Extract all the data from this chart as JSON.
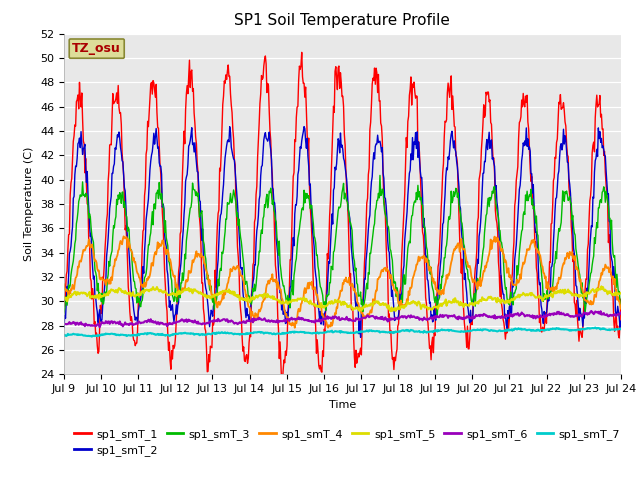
{
  "title": "SP1 Soil Temperature Profile",
  "xlabel": "Time",
  "ylabel": "Soil Temperature (C)",
  "ylim": [
    24,
    52
  ],
  "series_colors": {
    "sp1_smT_1": "#ff0000",
    "sp1_smT_2": "#0000cc",
    "sp1_smT_3": "#00bb00",
    "sp1_smT_4": "#ff8800",
    "sp1_smT_5": "#dddd00",
    "sp1_smT_6": "#9900bb",
    "sp1_smT_7": "#00cccc"
  },
  "annotation_text": "TZ_osu",
  "annotation_color": "#aa0000",
  "annotation_bg": "#dddd99",
  "annotation_border": "#888833",
  "n_days": 15,
  "start_day": 9,
  "fig_bg": "#ffffff",
  "ax_bg": "#e8e8e8",
  "grid_color": "#ffffff",
  "title_fontsize": 11,
  "axis_label_fontsize": 8,
  "tick_fontsize": 8,
  "legend_fontsize": 8
}
